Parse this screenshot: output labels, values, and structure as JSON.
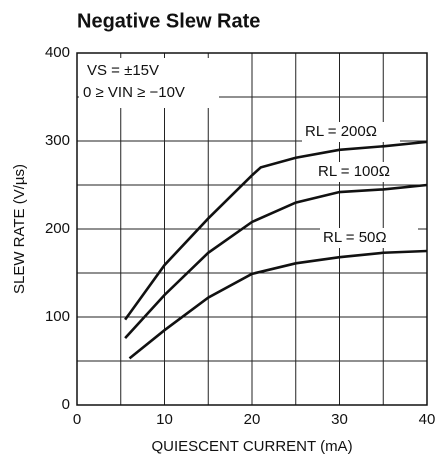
{
  "chart_data": {
    "type": "line",
    "title": "Negative Slew Rate",
    "x_label": "QUIESCENT CURRENT (mA)",
    "y_label": "SLEW RATE (V/µs)",
    "annotations": [
      "VS = ±15V",
      "0 ≥ VIN ≥ −10V"
    ],
    "xlim": [
      0,
      40
    ],
    "xticks": [
      0,
      10,
      20,
      30,
      40
    ],
    "xminorticks": [
      5,
      15,
      25,
      35
    ],
    "ylim": [
      0,
      400
    ],
    "yticks": [
      0,
      100,
      200,
      300,
      400
    ],
    "yminorticks": [
      50,
      150,
      250,
      350
    ],
    "grid": true,
    "series": [
      {
        "name": "RL = 200Ω",
        "color": "#111111",
        "x": [
          5.5,
          10,
          15,
          20,
          21,
          25,
          30,
          35,
          40
        ],
        "values": [
          97,
          159,
          212,
          261,
          270,
          281,
          290,
          294,
          299
        ]
      },
      {
        "name": "RL = 100Ω",
        "color": "#111111",
        "x": [
          5.5,
          10,
          15,
          20,
          25,
          30,
          35,
          40
        ],
        "values": [
          76,
          125,
          173,
          208,
          230,
          242,
          245,
          250
        ]
      },
      {
        "name": "RL = 50Ω",
        "color": "#111111",
        "x": [
          6,
          10,
          15,
          20,
          25,
          30,
          35,
          40
        ],
        "values": [
          53,
          85,
          122,
          149,
          161,
          168,
          173,
          175
        ]
      }
    ]
  }
}
